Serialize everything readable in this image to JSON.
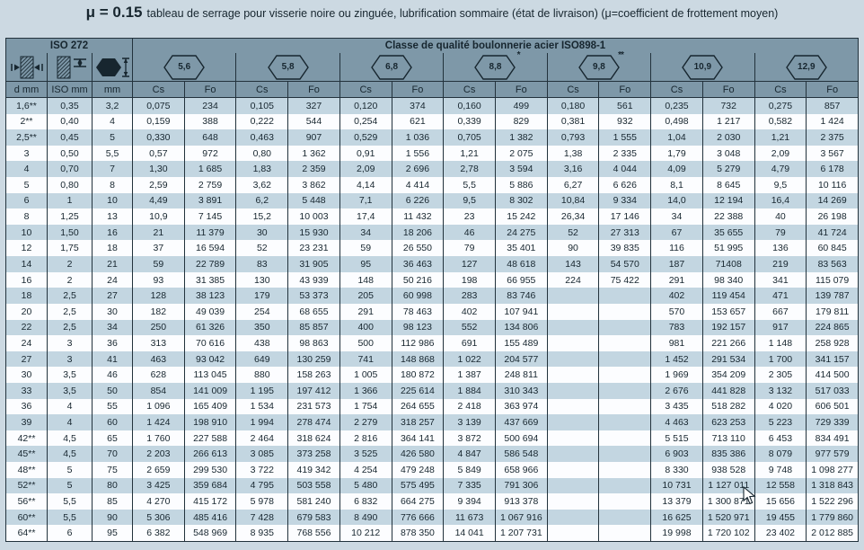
{
  "title": {
    "mu": "μ = 0.15",
    "text": "tableau de serrage pour visserie noire ou zinguée, lubrification sommaire (état de livraison) (μ=coefficient de frottement moyen)"
  },
  "table": {
    "iso_header": "ISO 272",
    "class_header": "Classe de qualité boulonnerie acier ISO898-1",
    "dim_icons": [
      "thread-outer-diameter-icon",
      "thread-pitch-icon",
      "hex-head-width-icon"
    ],
    "classes": [
      {
        "label": "5,6",
        "mark": ""
      },
      {
        "label": "5,8",
        "mark": ""
      },
      {
        "label": "6,8",
        "mark": ""
      },
      {
        "label": "8,8",
        "mark": "*"
      },
      {
        "label": "9,8",
        "mark": "**"
      },
      {
        "label": "10,9",
        "mark": ""
      },
      {
        "label": "12,9",
        "mark": ""
      }
    ],
    "sub_headers": [
      "d mm",
      "ISO mm",
      "mm"
    ],
    "cs_label": "Cs",
    "fo_label": "Fo",
    "rows": [
      [
        "1,6**",
        "0,35",
        "3,2",
        "0,075",
        "234",
        "0,105",
        "327",
        "0,120",
        "374",
        "0,160",
        "499",
        "0,180",
        "561",
        "0,235",
        "732",
        "0,275",
        "857"
      ],
      [
        "2**",
        "0,40",
        "4",
        "0,159",
        "388",
        "0,222",
        "544",
        "0,254",
        "621",
        "0,339",
        "829",
        "0,381",
        "932",
        "0,498",
        "1 217",
        "0,582",
        "1 424"
      ],
      [
        "2,5**",
        "0,45",
        "5",
        "0,330",
        "648",
        "0,463",
        "907",
        "0,529",
        "1 036",
        "0,705",
        "1 382",
        "0,793",
        "1 555",
        "1,04",
        "2 030",
        "1,21",
        "2 375"
      ],
      [
        "3",
        "0,50",
        "5,5",
        "0,57",
        "972",
        "0,80",
        "1 362",
        "0,91",
        "1 556",
        "1,21",
        "2 075",
        "1,38",
        "2 335",
        "1,79",
        "3 048",
        "2,09",
        "3 567"
      ],
      [
        "4",
        "0,70",
        "7",
        "1,30",
        "1 685",
        "1,83",
        "2 359",
        "2,09",
        "2 696",
        "2,78",
        "3 594",
        "3,16",
        "4 044",
        "4,09",
        "5 279",
        "4,79",
        "6 178"
      ],
      [
        "5",
        "0,80",
        "8",
        "2,59",
        "2 759",
        "3,62",
        "3 862",
        "4,14",
        "4 414",
        "5,5",
        "5 886",
        "6,27",
        "6 626",
        "8,1",
        "8 645",
        "9,5",
        "10 116"
      ],
      [
        "6",
        "1",
        "10",
        "4,49",
        "3 891",
        "6,2",
        "5 448",
        "7,1",
        "6 226",
        "9,5",
        "8 302",
        "10,84",
        "9 334",
        "14,0",
        "12 194",
        "16,4",
        "14 269"
      ],
      [
        "8",
        "1,25",
        "13",
        "10,9",
        "7 145",
        "15,2",
        "10 003",
        "17,4",
        "11 432",
        "23",
        "15 242",
        "26,34",
        "17 146",
        "34",
        "22 388",
        "40",
        "26 198"
      ],
      [
        "10",
        "1,50",
        "16",
        "21",
        "11 379",
        "30",
        "15 930",
        "34",
        "18 206",
        "46",
        "24 275",
        "52",
        "27 313",
        "67",
        "35 655",
        "79",
        "41 724"
      ],
      [
        "12",
        "1,75",
        "18",
        "37",
        "16 594",
        "52",
        "23 231",
        "59",
        "26 550",
        "79",
        "35 401",
        "90",
        "39 835",
        "116",
        "51 995",
        "136",
        "60 845"
      ],
      [
        "14",
        "2",
        "21",
        "59",
        "22 789",
        "83",
        "31 905",
        "95",
        "36 463",
        "127",
        "48 618",
        "143",
        "54 570",
        "187",
        "71408",
        "219",
        "83 563"
      ],
      [
        "16",
        "2",
        "24",
        "93",
        "31 385",
        "130",
        "43 939",
        "148",
        "50 216",
        "198",
        "66 955",
        "224",
        "75 422",
        "291",
        "98 340",
        "341",
        "115 079"
      ],
      [
        "18",
        "2,5",
        "27",
        "128",
        "38 123",
        "179",
        "53 373",
        "205",
        "60 998",
        "283",
        "83 746",
        "",
        "",
        "402",
        "119 454",
        "471",
        "139 787"
      ],
      [
        "20",
        "2,5",
        "30",
        "182",
        "49 039",
        "254",
        "68 655",
        "291",
        "78 463",
        "402",
        "107 941",
        "",
        "",
        "570",
        "153 657",
        "667",
        "179 811"
      ],
      [
        "22",
        "2,5",
        "34",
        "250",
        "61 326",
        "350",
        "85 857",
        "400",
        "98 123",
        "552",
        "134 806",
        "",
        "",
        "783",
        "192 157",
        "917",
        "224 865"
      ],
      [
        "24",
        "3",
        "36",
        "313",
        "70 616",
        "438",
        "98 863",
        "500",
        "112 986",
        "691",
        "155 489",
        "",
        "",
        "981",
        "221 266",
        "1 148",
        "258 928"
      ],
      [
        "27",
        "3",
        "41",
        "463",
        "93 042",
        "649",
        "130 259",
        "741",
        "148 868",
        "1 022",
        "204 577",
        "",
        "",
        "1 452",
        "291 534",
        "1 700",
        "341 157"
      ],
      [
        "30",
        "3,5",
        "46",
        "628",
        "113 045",
        "880",
        "158 263",
        "1 005",
        "180 872",
        "1 387",
        "248 811",
        "",
        "",
        "1 969",
        "354 209",
        "2 305",
        "414 500"
      ],
      [
        "33",
        "3,5",
        "50",
        "854",
        "141 009",
        "1 195",
        "197 412",
        "1 366",
        "225 614",
        "1 884",
        "310 343",
        "",
        "",
        "2 676",
        "441 828",
        "3 132",
        "517 033"
      ],
      [
        "36",
        "4",
        "55",
        "1 096",
        "165 409",
        "1 534",
        "231 573",
        "1 754",
        "264 655",
        "2 418",
        "363 974",
        "",
        "",
        "3 435",
        "518 282",
        "4 020",
        "606 501"
      ],
      [
        "39",
        "4",
        "60",
        "1 424",
        "198 910",
        "1 994",
        "278 474",
        "2 279",
        "318 257",
        "3 139",
        "437 669",
        "",
        "",
        "4 463",
        "623 253",
        "5 223",
        "729 339"
      ],
      [
        "42**",
        "4,5",
        "65",
        "1 760",
        "227 588",
        "2 464",
        "318 624",
        "2 816",
        "364 141",
        "3 872",
        "500 694",
        "",
        "",
        "5 515",
        "713 110",
        "6 453",
        "834 491"
      ],
      [
        "45**",
        "4,5",
        "70",
        "2 203",
        "266 613",
        "3 085",
        "373 258",
        "3 525",
        "426 580",
        "4 847",
        "586 548",
        "",
        "",
        "6 903",
        "835 386",
        "8 079",
        "977 579"
      ],
      [
        "48**",
        "5",
        "75",
        "2 659",
        "299 530",
        "3 722",
        "419 342",
        "4 254",
        "479 248",
        "5 849",
        "658 966",
        "",
        "",
        "8 330",
        "938 528",
        "9 748",
        "1 098 277"
      ],
      [
        "52**",
        "5",
        "80",
        "3 425",
        "359 684",
        "4 795",
        "503 558",
        "5 480",
        "575 495",
        "7 335",
        "791 306",
        "",
        "",
        "10 731",
        "1 127 011",
        "12 558",
        "1 318 843"
      ],
      [
        "56**",
        "5,5",
        "85",
        "4 270",
        "415 172",
        "5 978",
        "581 240",
        "6 832",
        "664 275",
        "9 394",
        "913 378",
        "",
        "",
        "13 379",
        "1 300 871",
        "15 656",
        "1 522 296"
      ],
      [
        "60**",
        "5,5",
        "90",
        "5 306",
        "485 416",
        "7 428",
        "679 583",
        "8 490",
        "776 666",
        "11 673",
        "1 067 916",
        "",
        "",
        "16 625",
        "1 520 971",
        "19 455",
        "1 779 860"
      ],
      [
        "64**",
        "6",
        "95",
        "6 382",
        "548 969",
        "8 935",
        "768 556",
        "10 212",
        "878 350",
        "14 041",
        "1 207 731",
        "",
        "",
        "19 998",
        "1 720 102",
        "23 402",
        "2 012 885"
      ]
    ]
  },
  "colors": {
    "page_bg": "#ccd9e2",
    "header_band": "#7e98a8",
    "row_light": "#c3d6e1",
    "row_white": "#fcfdff",
    "ink": "#17262f"
  }
}
